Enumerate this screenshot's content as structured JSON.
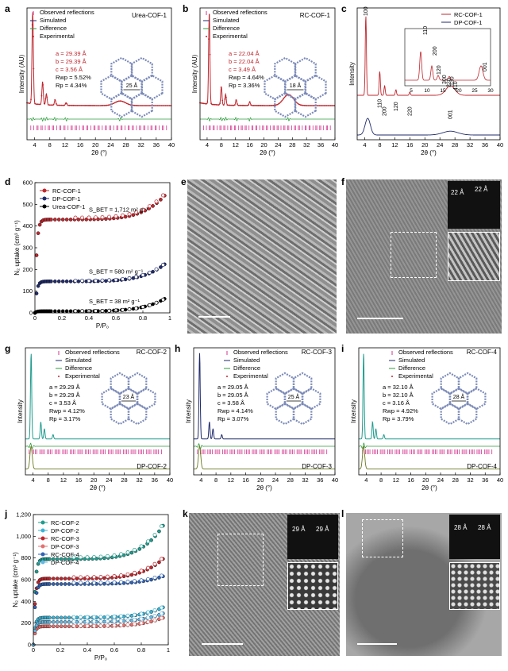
{
  "panel_labels": {
    "a": "a",
    "b": "b",
    "c": "c",
    "d": "d",
    "e": "e",
    "f": "f",
    "g": "g",
    "h": "h",
    "i": "i",
    "j": "j",
    "k": "k",
    "l": "l"
  },
  "common": {
    "legend_obs": "Observed reflections",
    "legend_sim": "Simulated",
    "legend_diff": "Difference",
    "legend_exp": "Experimental",
    "xlabel_2theta": "2θ (°)",
    "ylabel_int_au": "Intensity (AU)",
    "ylabel_int": "Intensity",
    "xlabel_pp0": "P/P₀",
    "ylabel_n2": "N₂ uptake (cm³ g⁻¹)"
  },
  "colors": {
    "red": "#c0262d",
    "navy": "#1f2a6b",
    "green": "#2e9e3e",
    "magenta": "#d4358f",
    "teal": "#1f9c8e",
    "olive": "#6b7a1e",
    "blue": "#2f63b5",
    "lightblue": "#39b4d6",
    "black": "#000000"
  },
  "chart_data": [
    {
      "id": "a",
      "type": "line",
      "title": "Urea-COF-1",
      "params": [
        "a = 29.39 Å",
        "b = 29.39 Å",
        "c = 3.56 Å",
        "Rwp = 5.52%",
        "Rp = 4.34%"
      ],
      "pore": "25 Å",
      "xlim": [
        2,
        40
      ],
      "xticks": [
        4,
        8,
        12,
        16,
        20,
        24,
        28,
        32,
        36,
        40
      ],
      "peaks": [
        [
          3.5,
          1.0
        ],
        [
          6.1,
          0.25
        ],
        [
          7.1,
          0.12
        ],
        [
          9.4,
          0.06
        ],
        [
          12.3,
          0.03
        ],
        [
          26.5,
          0.05
        ]
      ]
    },
    {
      "id": "b",
      "type": "line",
      "title": "RC-COF-1",
      "params": [
        "a = 22.04 Å",
        "b = 22.04 Å",
        "c = 3.49 Å",
        "Rwp = 4.64%",
        "Rp = 3.36%"
      ],
      "pore": "18 Å",
      "xlim": [
        2,
        40
      ],
      "xticks": [
        4,
        8,
        12,
        16,
        20,
        24,
        28,
        32,
        36,
        40
      ],
      "peaks": [
        [
          4.6,
          1.0
        ],
        [
          8.0,
          0.2
        ],
        [
          9.2,
          0.12
        ],
        [
          12.2,
          0.06
        ],
        [
          16.0,
          0.04
        ],
        [
          26.9,
          0.12
        ]
      ]
    },
    {
      "id": "c",
      "type": "line",
      "series": [
        {
          "name": "RC-COF-1"
        },
        {
          "name": "DP-COF-1"
        }
      ],
      "xlim": [
        2,
        40
      ],
      "xticks": [
        4,
        8,
        12,
        16,
        20,
        24,
        28,
        32,
        36,
        40
      ],
      "inset_xticks": [
        5,
        10,
        15,
        20,
        25,
        30
      ],
      "labels_rc": [
        "100",
        "110",
        "200",
        "120",
        "300",
        "220",
        "130",
        "410",
        "001"
      ],
      "labels_dp": [
        "110",
        "200",
        "120",
        "220",
        "001"
      ]
    },
    {
      "id": "d",
      "type": "scatter",
      "xlim": [
        0,
        1
      ],
      "ylim": [
        0,
        600
      ],
      "yticks": [
        0,
        100,
        200,
        300,
        400,
        500,
        600
      ],
      "xticks": [
        0,
        0.2,
        0.4,
        0.6,
        0.8,
        1.0
      ],
      "series": [
        {
          "name": "RC-COF-1",
          "sbet": "S_BET = 1,712 m² g⁻¹",
          "plateau": 430,
          "end": 570
        },
        {
          "name": "DP-COF-1",
          "sbet": "S_BET = 580 m² g⁻¹",
          "plateau": 145,
          "end": 245
        },
        {
          "name": "Urea-COF-1",
          "sbet": "S_BET = 38 m² g⁻¹",
          "plateau": 8,
          "end": 80
        }
      ]
    },
    {
      "id": "g",
      "type": "line",
      "title": "RC-COF-2",
      "bottom": "DP-COF-2",
      "params": [
        "a = 29.29 Å",
        "b = 29.29 Å",
        "c = 3.53 Å",
        "Rwp = 4.12%",
        "Rp = 3.17%"
      ],
      "pore": "23 Å",
      "xlim": [
        2,
        40
      ],
      "xticks": [
        4,
        8,
        12,
        16,
        20,
        24,
        28,
        32,
        36,
        40
      ]
    },
    {
      "id": "h",
      "type": "line",
      "title": "RC-COF-3",
      "bottom": "DP-COF-3",
      "params": [
        "a = 29.05 Å",
        "b = 29.05 Å",
        "c = 3.58 Å",
        "Rwp = 4.14%",
        "Rp = 3.07%"
      ],
      "pore": "25 Å",
      "xlim": [
        2,
        40
      ],
      "xticks": [
        4,
        8,
        12,
        16,
        20,
        24,
        28,
        32,
        36,
        40
      ]
    },
    {
      "id": "i",
      "type": "line",
      "title": "RC-COF-4",
      "bottom": "DP-COF-4",
      "params": [
        "a = 32.10 Å",
        "b = 32.10 Å",
        "c = 3.16 Å",
        "Rwp = 4.92%",
        "Rp = 3.79%"
      ],
      "pore": "28 Å",
      "xlim": [
        2,
        40
      ],
      "xticks": [
        4,
        8,
        12,
        16,
        20,
        24,
        28,
        32,
        36,
        40
      ]
    },
    {
      "id": "j",
      "type": "scatter",
      "xlim": [
        0,
        1
      ],
      "ylim": [
        0,
        1200
      ],
      "yticks": [
        0,
        200,
        400,
        600,
        800,
        1000,
        1200
      ],
      "ytick_labels": [
        "0",
        "200",
        "400",
        "600",
        "800",
        "1,000",
        "1,200"
      ],
      "xticks": [
        0,
        0.2,
        0.4,
        0.6,
        0.8,
        1.0
      ],
      "series": [
        {
          "name": "RC-COF-2",
          "plateau": 790,
          "end": 1180
        },
        {
          "name": "DP-COF-2",
          "plateau": 250,
          "end": 370
        },
        {
          "name": "RC-COF-3",
          "plateau": 610,
          "end": 840
        },
        {
          "name": "DP-COF-3",
          "plateau": 170,
          "end": 270
        },
        {
          "name": "RC-COF-4",
          "plateau": 560,
          "end": 650
        },
        {
          "name": "DP-COF-4",
          "plateau": 210,
          "end": 310
        }
      ]
    }
  ],
  "tem": {
    "f": {
      "d1": "22 Å",
      "d2": "22 Å"
    },
    "k": {
      "d1": "29 Å",
      "d2": "29 Å"
    },
    "l": {
      "d1": "28 Å",
      "d2": "28 Å"
    }
  }
}
